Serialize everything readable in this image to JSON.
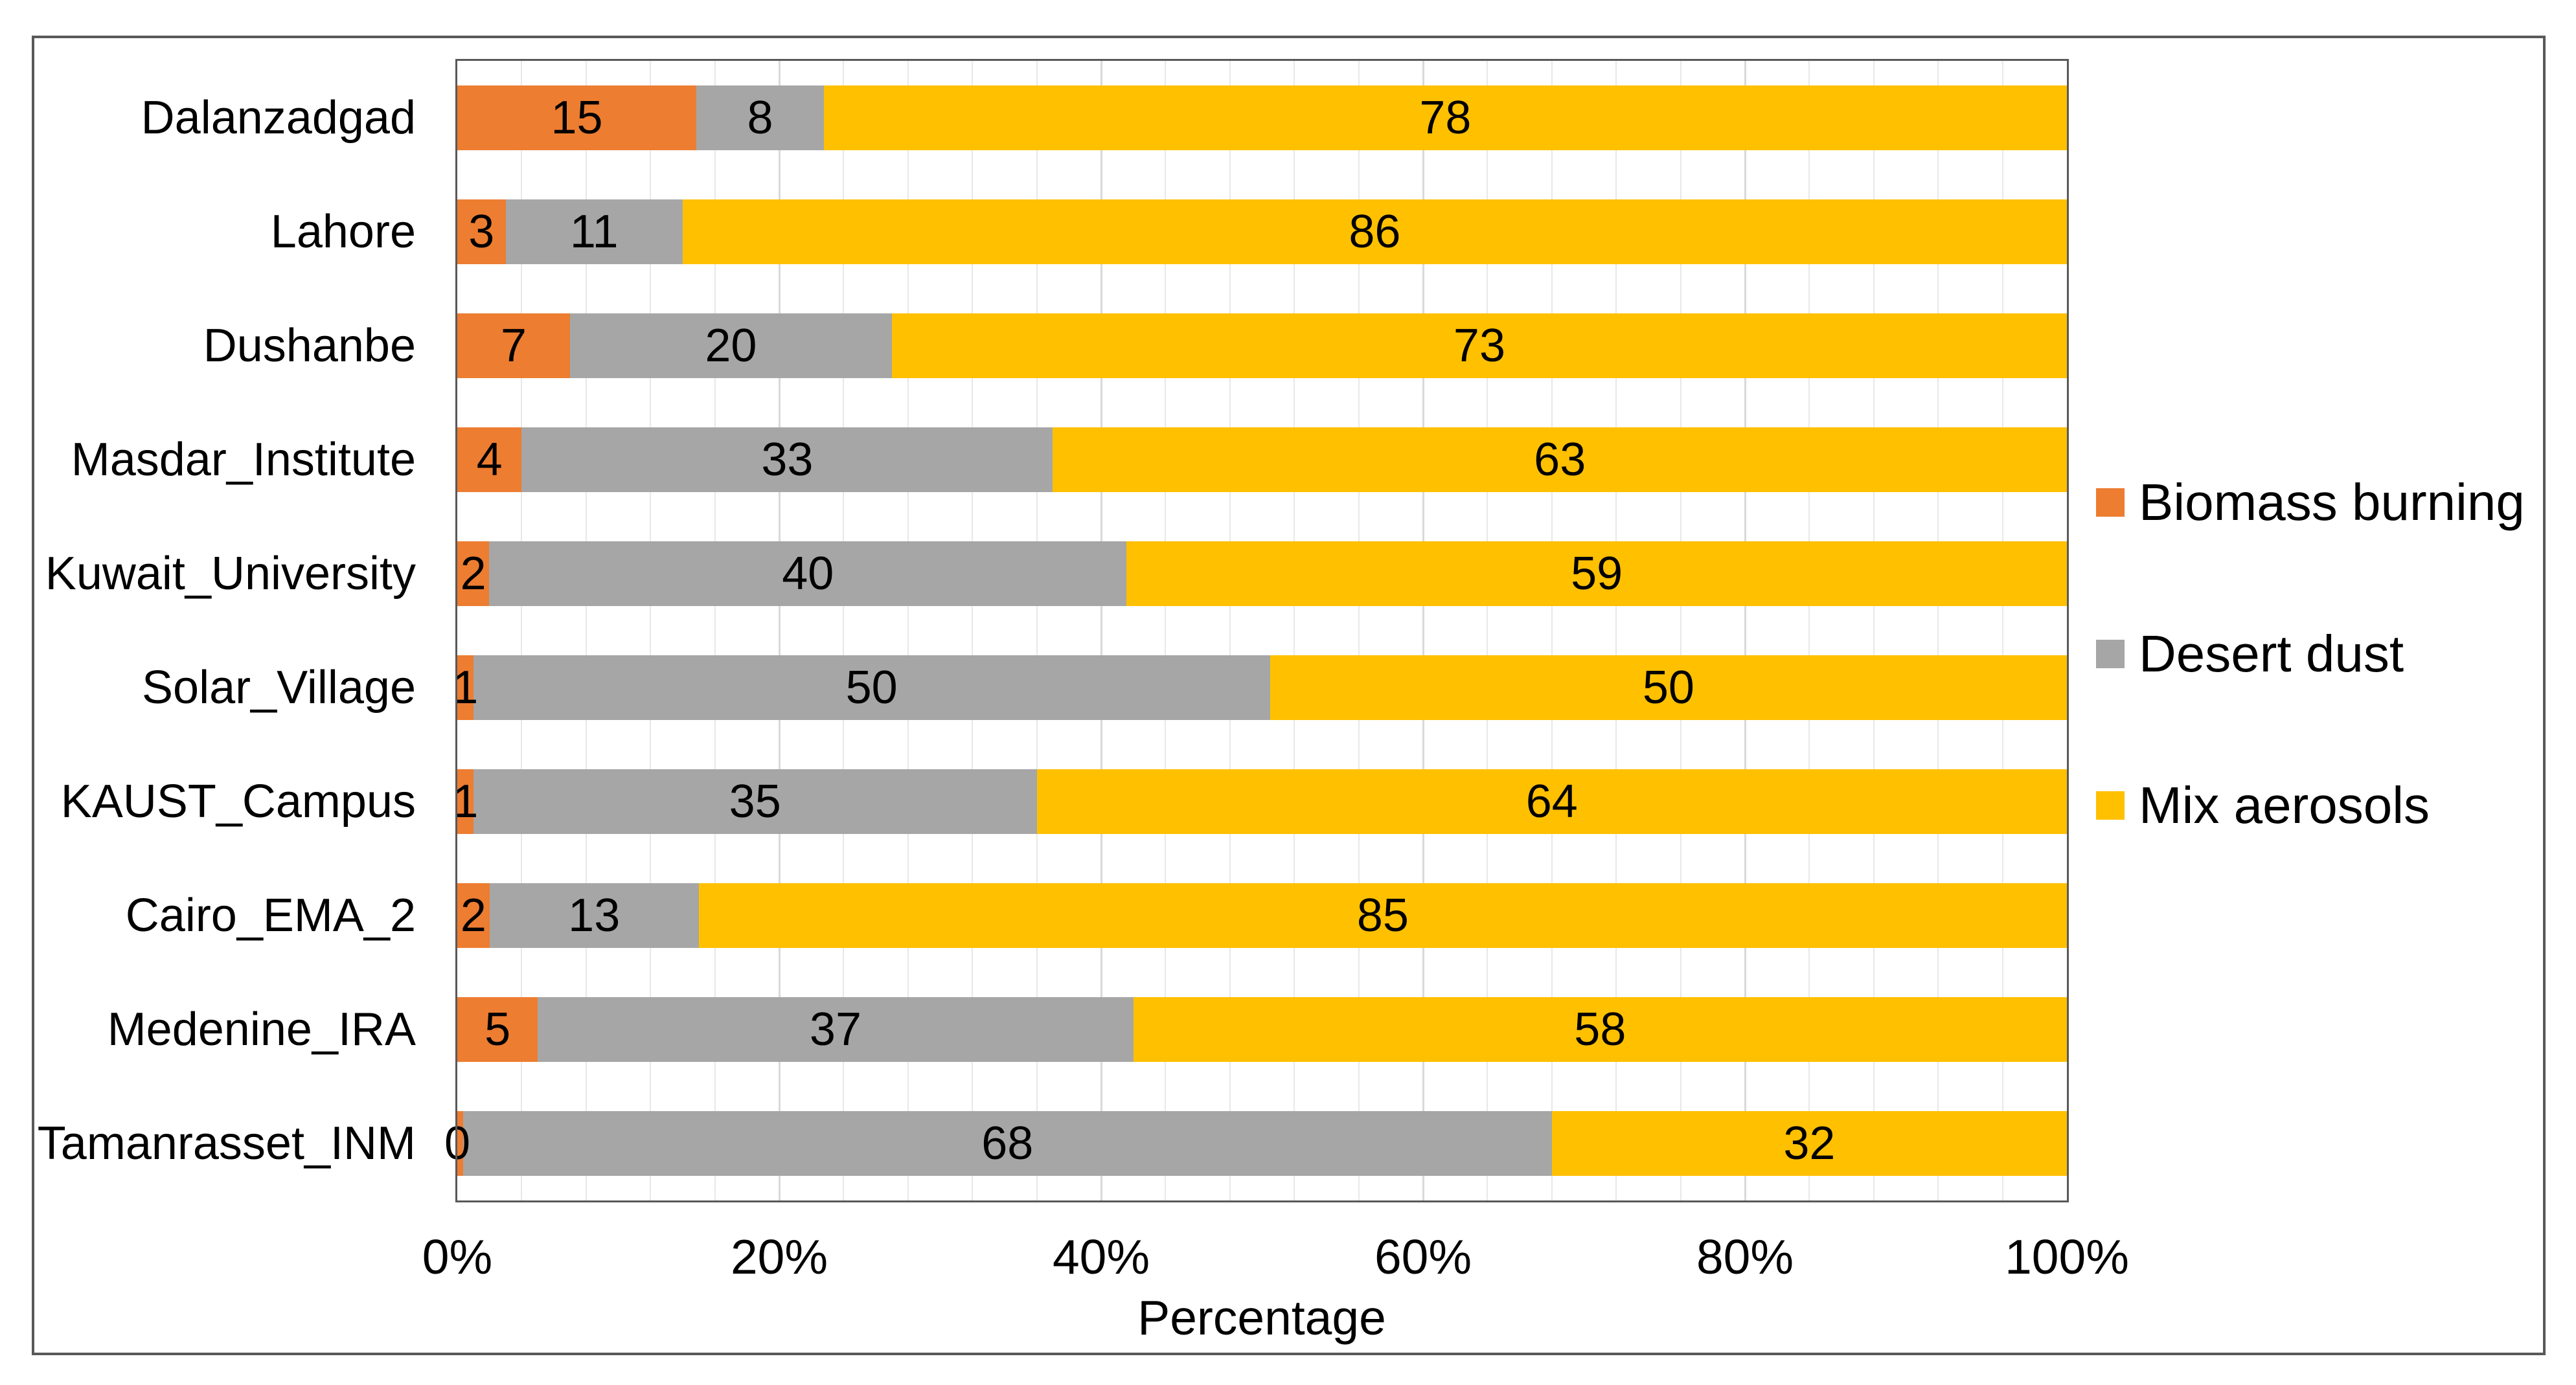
{
  "chart_data": {
    "type": "bar",
    "variant": "horizontal-stacked-100",
    "title": "",
    "xlabel": "Percentage",
    "ylabel": "",
    "xlim": [
      0,
      100
    ],
    "x_ticks": [
      "0%",
      "20%",
      "40%",
      "60%",
      "80%",
      "100%"
    ],
    "x_tick_values": [
      0,
      20,
      40,
      60,
      80,
      100
    ],
    "grid": {
      "minor_step_pct": 4,
      "major_step_pct": 20,
      "orientation": "vertical"
    },
    "legend_position": "right",
    "categories": [
      "Dalanzadgad",
      "Lahore",
      "Dushanbe",
      "Masdar_Institute",
      "Kuwait_University",
      "Solar_Village",
      "KAUST_Campus",
      "Cairo_EMA_2",
      "Medenine_IRA",
      "Tamanrasset_INM"
    ],
    "series": [
      {
        "name": "Biomass burning",
        "color": "#ED7D31",
        "values": [
          15,
          3,
          7,
          4,
          2,
          1,
          1,
          2,
          5,
          0
        ]
      },
      {
        "name": "Desert dust",
        "color": "#A6A6A6",
        "values": [
          8,
          11,
          20,
          33,
          40,
          50,
          35,
          13,
          37,
          68
        ]
      },
      {
        "name": "Mix aerosols",
        "color": "#FFC000",
        "values": [
          78,
          86,
          73,
          63,
          59,
          50,
          64,
          85,
          58,
          32
        ]
      }
    ],
    "colors": {
      "plot_border": "#595959",
      "figure_border": "#595959",
      "gridline_minor": "#E8E8E8",
      "gridline_major": "#D9D9D9",
      "label_text": "#000000"
    }
  }
}
